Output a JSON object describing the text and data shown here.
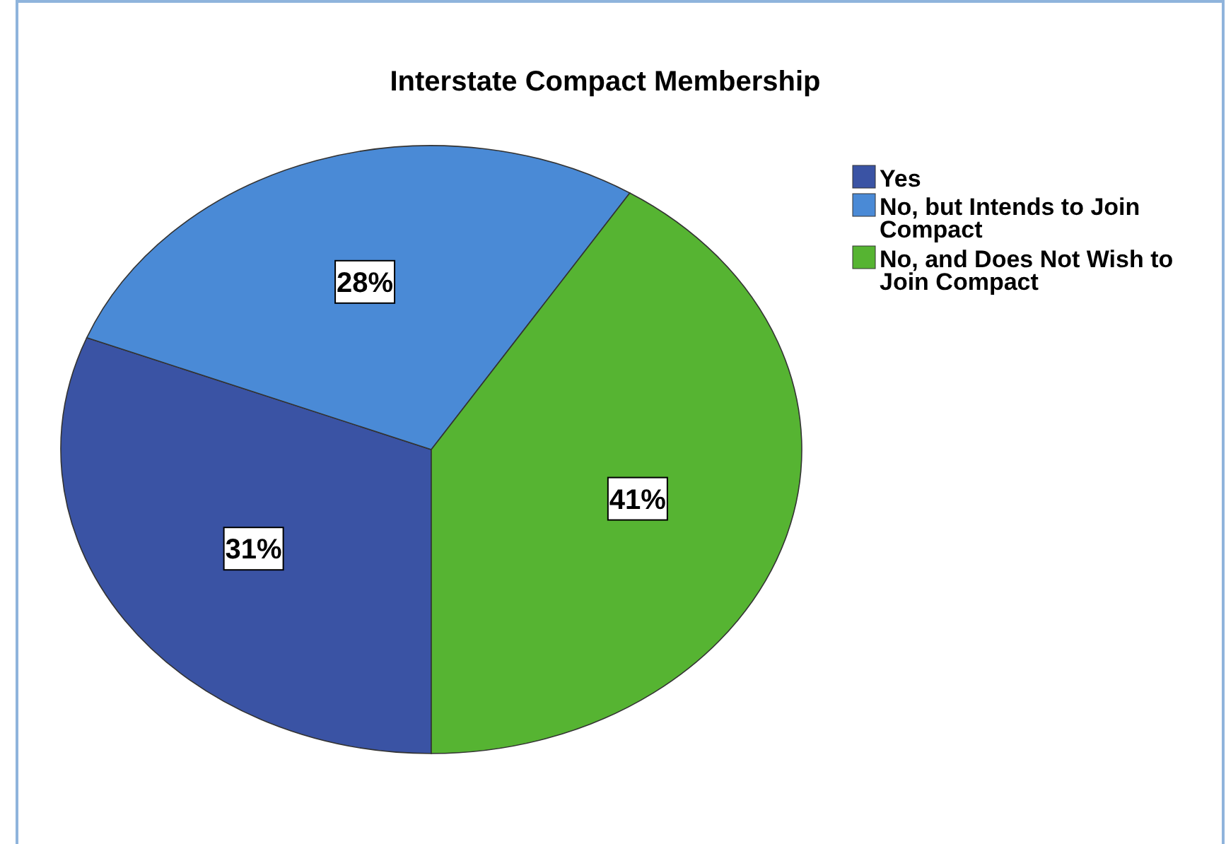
{
  "chart_data": {
    "type": "pie",
    "title": "Interstate Compact Membership",
    "categories": [
      "Yes",
      "No, but Intends to Join Compact",
      "No, and Does Not Wish to Join Compact"
    ],
    "values": [
      31,
      28,
      41
    ],
    "value_labels": [
      "31%",
      "28%",
      "41%"
    ],
    "colors": [
      "#3a53a4",
      "#4a8ad6",
      "#56b432"
    ],
    "legend": "top right"
  }
}
